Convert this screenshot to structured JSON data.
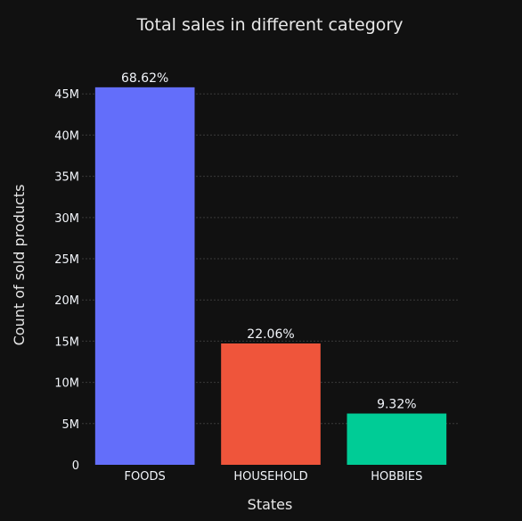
{
  "chart_data": {
    "type": "bar",
    "title": "Total sales in different category",
    "xlabel": "States",
    "ylabel": "Count of sold products",
    "categories": [
      "FOODS",
      "HOUSEHOLD",
      "HOBBIES"
    ],
    "values": [
      45800000,
      14720000,
      6220000
    ],
    "data_labels": [
      "68.62%",
      "22.06%",
      "9.32%"
    ],
    "bar_colors": [
      "#636EFA",
      "#EF553B",
      "#00CC96"
    ],
    "ylim": [
      0,
      46000000
    ],
    "y_ticks": [
      0,
      5000000,
      10000000,
      15000000,
      20000000,
      25000000,
      30000000,
      35000000,
      40000000,
      45000000
    ],
    "y_tick_labels": [
      "0",
      "5M",
      "10M",
      "15M",
      "20M",
      "25M",
      "30M",
      "35M",
      "40M",
      "45M"
    ],
    "grid": true,
    "legend": "none"
  },
  "colors": {
    "background": "#111111",
    "text": "#f2f5fa",
    "grid": "#3a3a3a"
  }
}
